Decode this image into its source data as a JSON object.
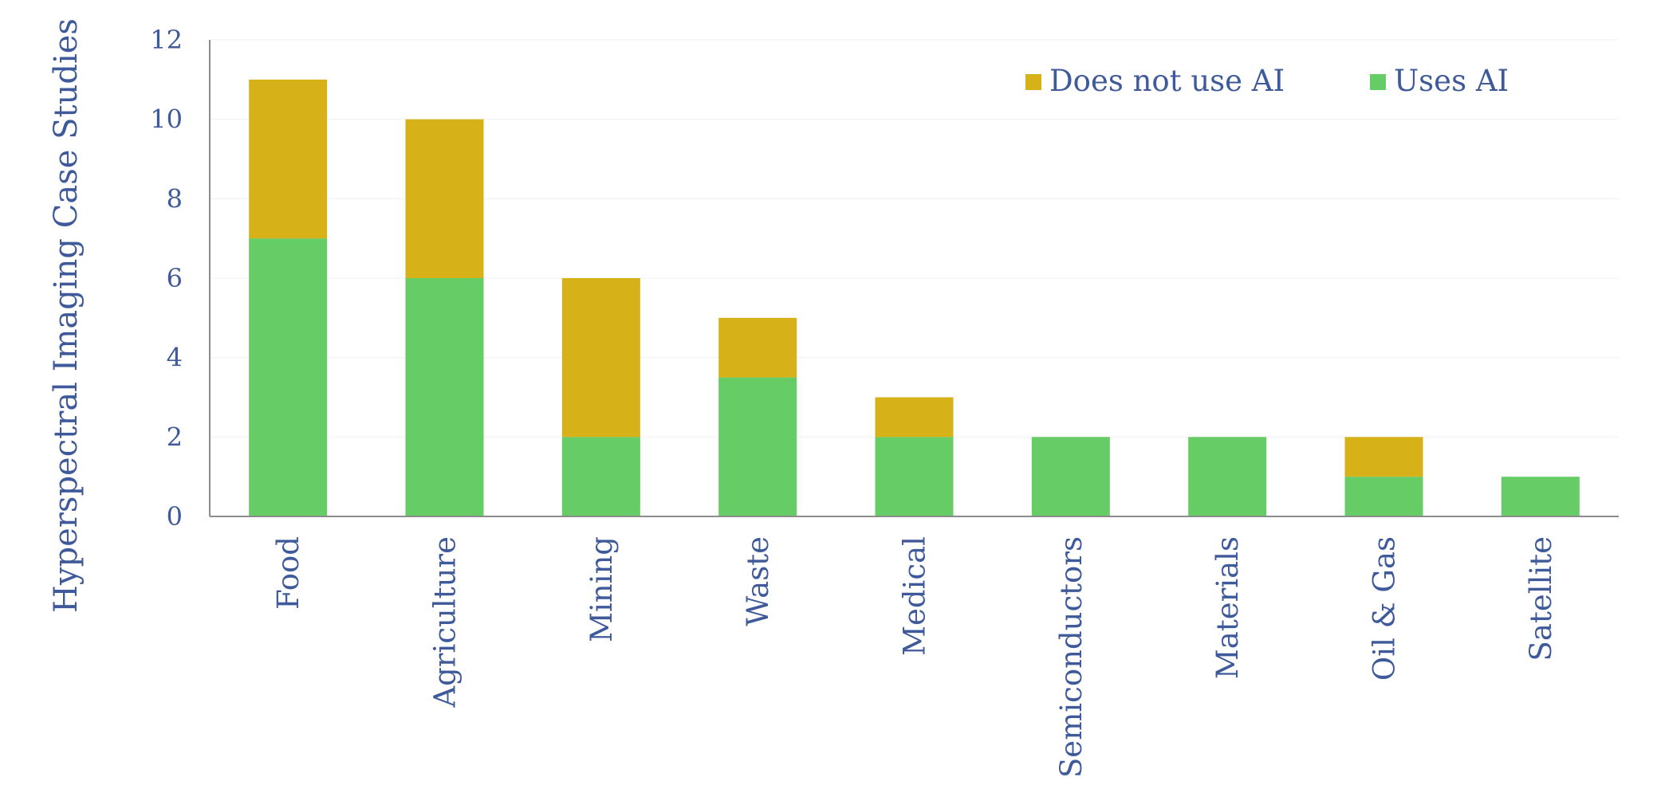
{
  "chart_data": {
    "type": "bar",
    "stacked": true,
    "ylabel": "Hyperspectral Imaging Case Studies",
    "ylim": [
      0,
      12
    ],
    "yticks": [
      0,
      2,
      4,
      6,
      8,
      10,
      12
    ],
    "grid": true,
    "legend_position": "top-right",
    "categories": [
      "Food",
      "Agriculture",
      "Mining",
      "Waste",
      "Medical",
      "Semiconductors",
      "Materials",
      "Oil & Gas",
      "Satellite"
    ],
    "series": [
      {
        "name": "Uses AI",
        "color": "#66cc66",
        "values": [
          7,
          6,
          2,
          3.5,
          2,
          2,
          2,
          1,
          1
        ]
      },
      {
        "name": "Does not use AI",
        "color": "#d6b118",
        "values": [
          4,
          4,
          4,
          1.5,
          1,
          0,
          0,
          1,
          0
        ]
      }
    ],
    "legend_order": [
      "Does not use AI",
      "Uses AI"
    ]
  },
  "colors": {
    "text": "#3f5a9a",
    "axis": "#8c8c8c",
    "grid": "#f0f0f0"
  }
}
